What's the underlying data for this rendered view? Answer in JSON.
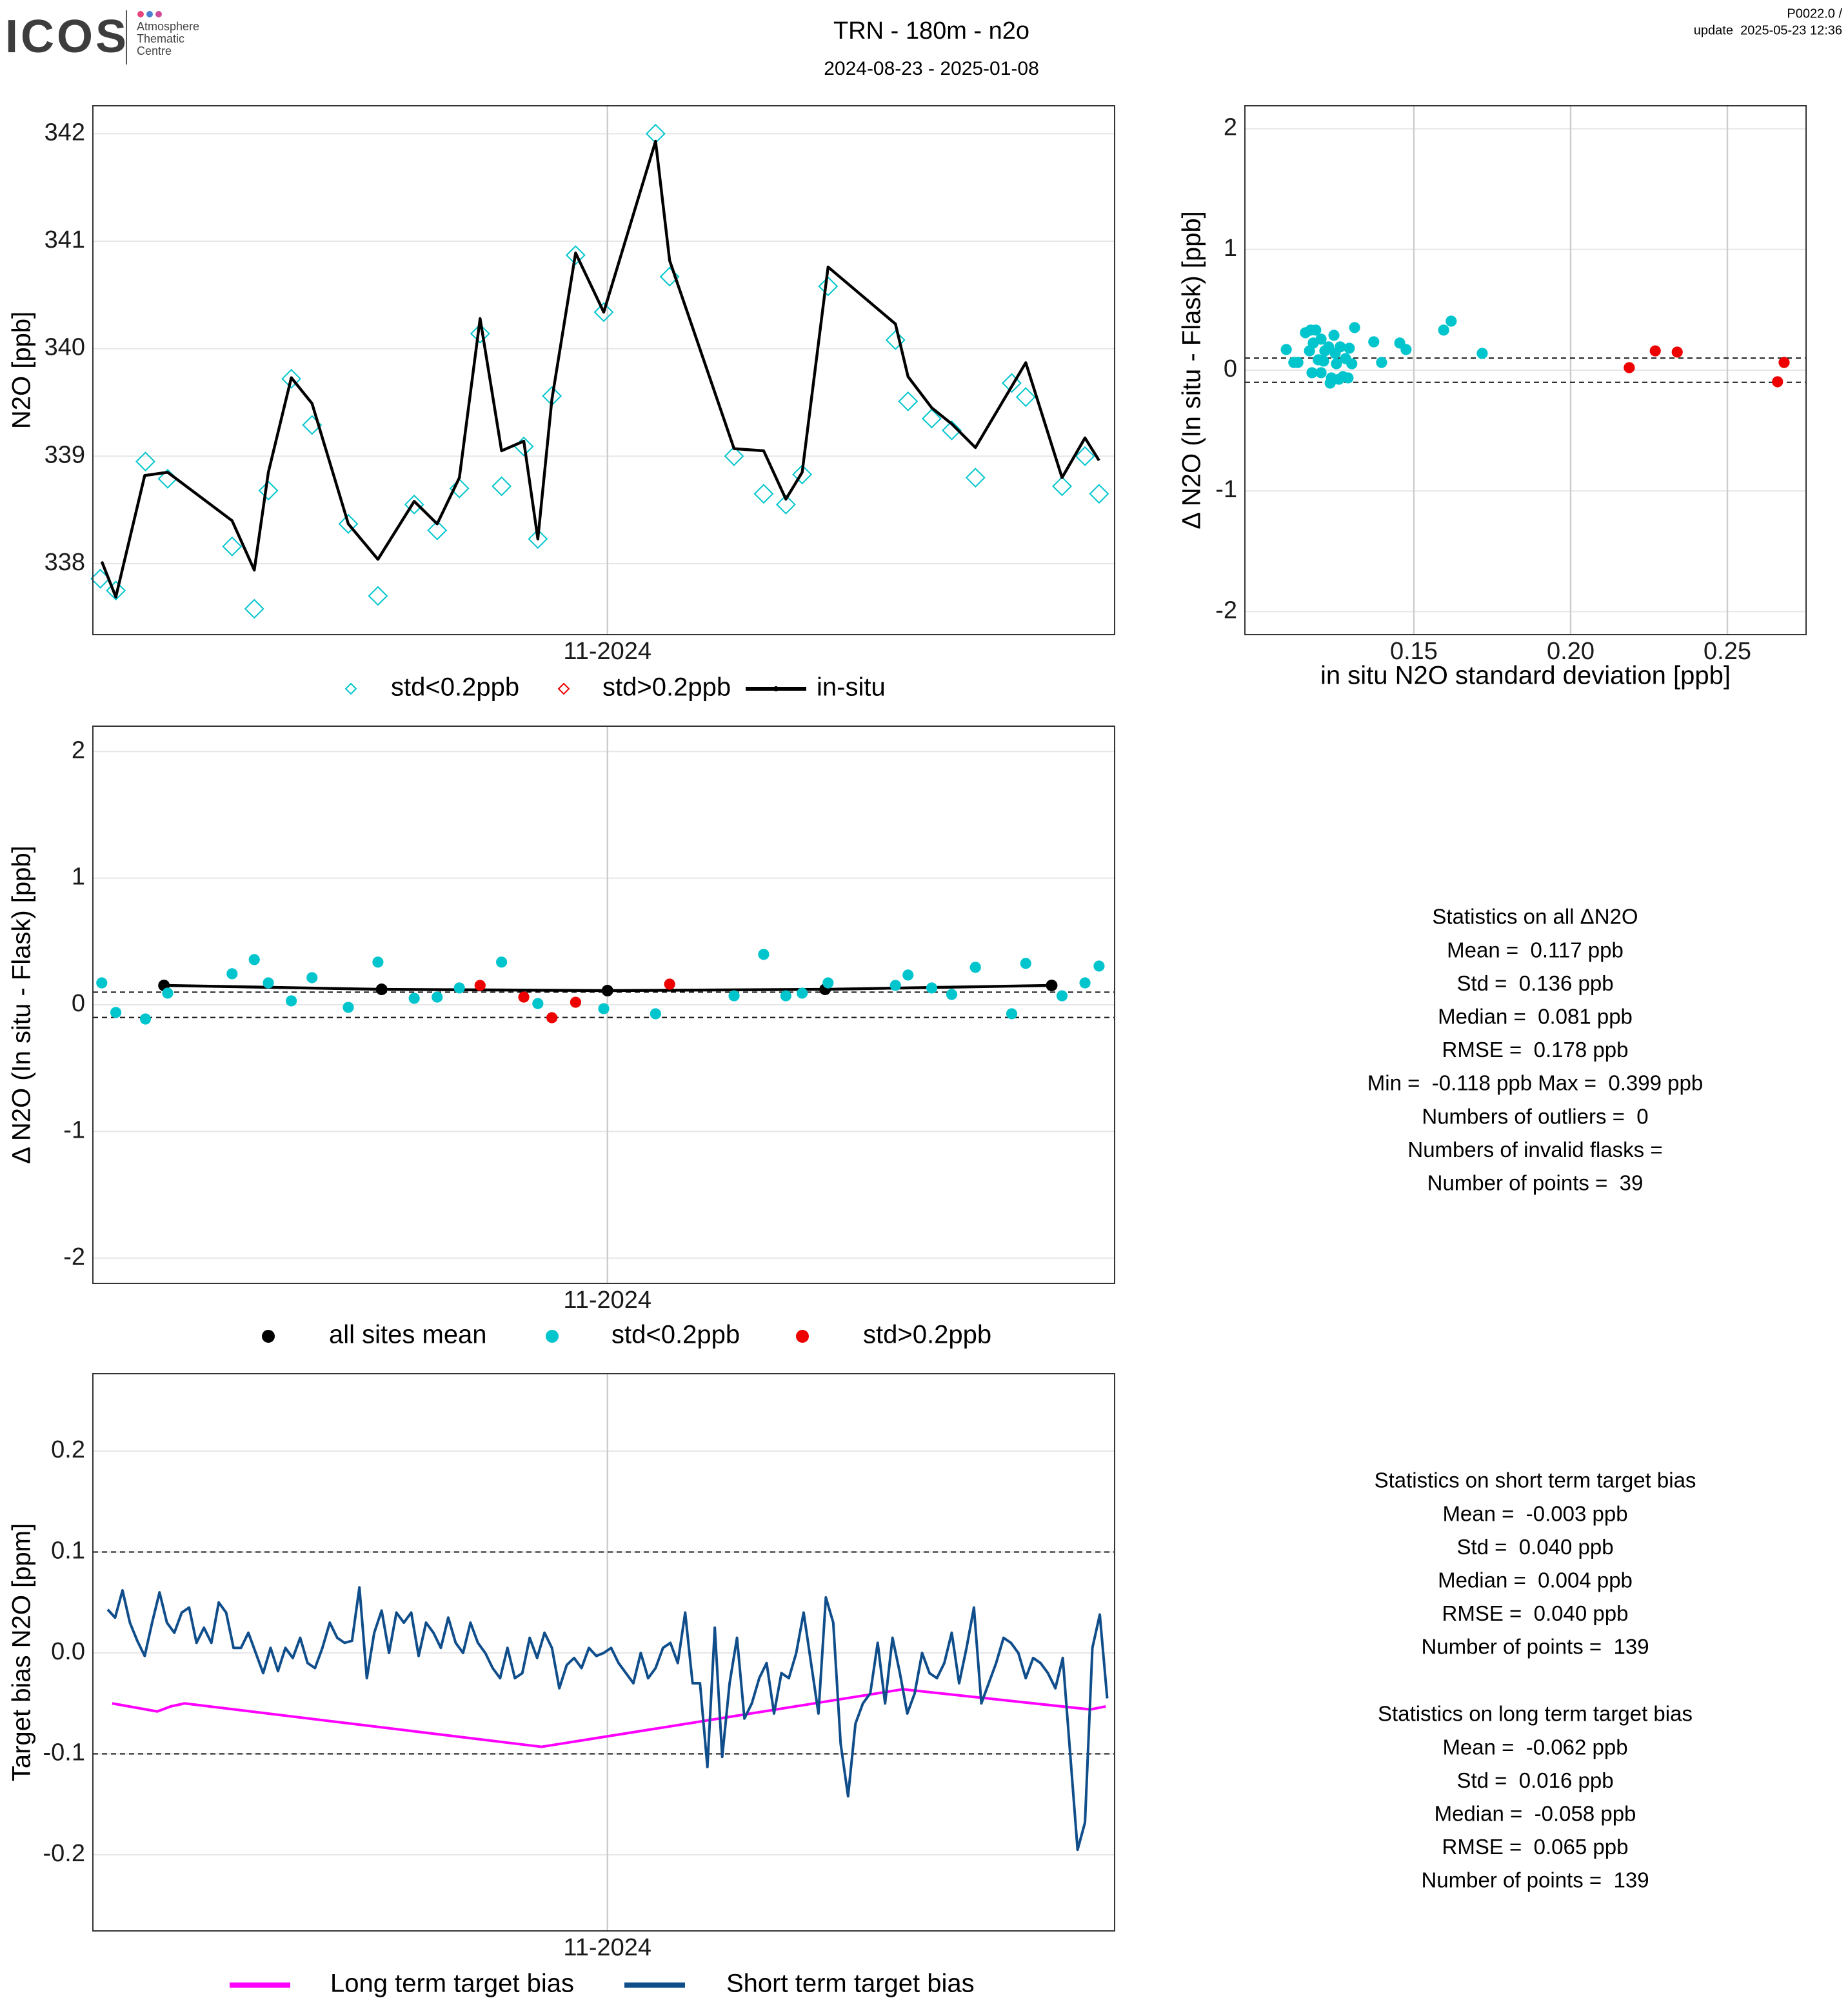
{
  "header": {
    "logo": "ICOS",
    "logo_sub": [
      "Atmosphere",
      "Thematic",
      "Centre"
    ],
    "title": "TRN - 180m - n2o",
    "subtitle": "2024-08-23 - 2025-01-08",
    "version": "P0022.0 /",
    "update": "update  2025-05-23 12:36"
  },
  "chart_data": [
    {
      "type": "line",
      "ylabel": "N2O [ppb]",
      "xlim": [
        0,
        138
      ],
      "xticks": [
        {
          "value": 69.5,
          "label": "11-2024"
        }
      ],
      "ylim": [
        337.34,
        342.26
      ],
      "yticks": [
        338,
        339,
        340,
        341,
        342
      ],
      "grid": true,
      "series": [
        {
          "name": "std<0.2ppb",
          "color": "#00c5cd",
          "marker": "diamond-open",
          "x": [
            1.0,
            3.1,
            7.1,
            10.1,
            18.8,
            21.8,
            23.7,
            26.8,
            29.6,
            34.5,
            38.5,
            43.4,
            46.5,
            49.5,
            52.3,
            55.2,
            58.2,
            60.1,
            62.0,
            65.2,
            69.0,
            76.0,
            77.9,
            86.6,
            90.6,
            93.6,
            95.8,
            99.3,
            108.4,
            110.1,
            113.3,
            116.0,
            119.2,
            124.1,
            126.0,
            130.9,
            134.0,
            135.9
          ],
          "values": [
            337.86,
            337.75,
            338.95,
            338.79,
            338.16,
            337.58,
            338.68,
            339.72,
            339.29,
            338.37,
            337.7,
            338.55,
            338.31,
            338.7,
            340.14,
            338.72,
            339.09,
            338.23,
            339.56,
            340.87,
            340.34,
            342.0,
            340.67,
            339.0,
            338.65,
            338.55,
            338.83,
            340.58,
            340.08,
            339.51,
            339.35,
            339.24,
            338.8,
            339.68,
            339.55,
            338.72,
            339.0,
            338.65
          ]
        },
        {
          "name": "std>0.2ppb",
          "color": "#ee0000",
          "marker": "diamond-open",
          "x": [],
          "values": []
        },
        {
          "name": "in-situ",
          "color": "#000000",
          "marker": "line-dot",
          "x": [
            1.2,
            3.1,
            7.0,
            10.1,
            18.8,
            21.8,
            23.7,
            26.8,
            29.6,
            34.5,
            38.5,
            43.4,
            46.5,
            49.5,
            52.3,
            55.2,
            58.2,
            60.1,
            62.0,
            65.2,
            69.0,
            76.0,
            77.9,
            86.6,
            90.6,
            93.6,
            95.8,
            99.3,
            108.4,
            110.1,
            113.3,
            116.0,
            119.2,
            126.0,
            130.9,
            134.0,
            135.9
          ],
          "values": [
            338.02,
            337.69,
            338.82,
            338.85,
            338.4,
            337.94,
            338.85,
            339.73,
            339.49,
            338.37,
            338.04,
            338.58,
            338.37,
            338.8,
            340.28,
            339.05,
            339.14,
            338.23,
            339.53,
            340.89,
            340.34,
            341.93,
            340.82,
            339.07,
            339.05,
            338.6,
            338.85,
            340.76,
            340.23,
            339.74,
            339.45,
            339.3,
            339.08,
            339.87,
            338.8,
            339.17,
            338.96
          ]
        }
      ]
    },
    {
      "type": "scatter",
      "xlabel": "in situ N2O standard deviation [ppb]",
      "ylabel": "Δ N2O (In situ - Flask) [ppb]",
      "xlim": [
        0.0961,
        0.2751
      ],
      "xticks": [
        0.15,
        {
          "value": 0.2,
          "label": "0.20"
        },
        0.25
      ],
      "ylim": [
        -2.19,
        2.19
      ],
      "yticks": [
        -2,
        -1,
        0,
        1,
        2
      ],
      "ref_lines": [
        -0.1,
        0.1
      ],
      "grid": true,
      "series": [
        {
          "color": "#00c5cd",
          "marker": "circle",
          "x": [
            0.1093,
            0.1117,
            0.113,
            0.1154,
            0.1167,
            0.1171,
            0.1175,
            0.1179,
            0.1187,
            0.1195,
            0.1204,
            0.1204,
            0.1212,
            0.1216,
            0.1228,
            0.1233,
            0.1237,
            0.1245,
            0.1249,
            0.1253,
            0.1261,
            0.1265,
            0.1274,
            0.1282,
            0.129,
            0.1294,
            0.1302,
            0.1311,
            0.1372,
            0.1397,
            0.1455,
            0.1475,
            0.1595,
            0.1619,
            0.1718
          ],
          "values": [
            0.171,
            0.064,
            0.064,
            0.31,
            0.16,
            0.332,
            -0.021,
            0.225,
            0.332,
            0.086,
            -0.021,
            0.257,
            0.075,
            0.16,
            0.193,
            -0.107,
            -0.064,
            0.289,
            0.139,
            0.053,
            -0.075,
            0.193,
            -0.053,
            0.096,
            -0.064,
            0.182,
            0.053,
            0.353,
            0.235,
            0.064,
            0.225,
            0.171,
            0.332,
            0.406,
            0.139
          ]
        },
        {
          "color": "#ee0000",
          "marker": "circle",
          "x": [
            0.2187,
            0.227,
            0.234,
            0.266,
            0.2681
          ],
          "values": [
            0.021,
            0.16,
            0.15,
            -0.096,
            0.064
          ]
        }
      ]
    },
    {
      "type": "scatter",
      "ylabel": "Δ N2O (In situ - Flask) [ppb]",
      "xlim": [
        0,
        138
      ],
      "xticks": [
        {
          "value": 69.5,
          "label": "11-2024"
        }
      ],
      "ylim": [
        -2.2,
        2.2
      ],
      "yticks": [
        -2,
        -1,
        0,
        1,
        2
      ],
      "ref_lines": [
        -0.1,
        0.1
      ],
      "grid": true,
      "series": [
        {
          "name": "all sites mean",
          "color": "#000000",
          "marker": "circle-line",
          "x": [
            9.6,
            39.0,
            69.5,
            98.9,
            129.5
          ],
          "values": [
            0.153,
            0.122,
            0.112,
            0.122,
            0.153
          ]
        },
        {
          "name": "std<0.2ppb",
          "color": "#00c5cd",
          "marker": "circle",
          "x": [
            1.2,
            3.1,
            7.1,
            10.1,
            18.8,
            21.8,
            23.7,
            26.8,
            29.6,
            34.5,
            38.5,
            43.4,
            46.5,
            49.5,
            55.2,
            60.1,
            69.0,
            76.0,
            86.6,
            90.6,
            93.6,
            95.8,
            99.3,
            108.4,
            110.1,
            113.3,
            116.0,
            119.2,
            124.1,
            126.0,
            130.9,
            134.0,
            135.9
          ],
          "values": [
            0.173,
            -0.061,
            -0.112,
            0.092,
            0.245,
            0.357,
            0.173,
            0.031,
            0.214,
            -0.02,
            0.337,
            0.051,
            0.061,
            0.133,
            0.337,
            0.01,
            -0.031,
            -0.071,
            0.071,
            0.398,
            0.071,
            0.092,
            0.173,
            0.153,
            0.235,
            0.133,
            0.082,
            0.296,
            -0.071,
            0.327,
            0.071,
            0.173,
            0.306
          ]
        },
        {
          "name": "std>0.2ppb",
          "color": "#ee0000",
          "marker": "circle",
          "x": [
            52.3,
            58.2,
            62.0,
            65.2,
            77.9
          ],
          "values": [
            0.153,
            0.061,
            -0.102,
            0.02,
            0.163
          ]
        }
      ]
    },
    {
      "type": "line",
      "ylabel": "Target bias N2O [ppm]",
      "xlim": [
        0,
        138
      ],
      "xticks": [
        {
          "value": 69.5,
          "label": "11-2024"
        }
      ],
      "ylim": [
        -0.2754,
        0.2767
      ],
      "yticks": [
        -0.2,
        -0.1,
        {
          "value": 0,
          "label": "0.0"
        },
        0.1,
        0.2
      ],
      "ref_lines": [
        -0.1,
        0.1
      ],
      "grid": true,
      "series": [
        {
          "name": "Long term target bias",
          "color": "#ff00ff",
          "marker": "line",
          "x": [
            2.6,
            8.7,
            10.5,
            12.4,
            60.6,
            109.4,
            134.7,
            136.8
          ],
          "values": [
            -0.05,
            -0.058,
            -0.053,
            -0.05,
            -0.093,
            -0.036,
            -0.056,
            -0.053
          ]
        },
        {
          "name": "Short term target bias",
          "color": "#104e8b",
          "marker": "line",
          "x": [
            2,
            3,
            4,
            5,
            6,
            7,
            8,
            9,
            10,
            11,
            12,
            13,
            14,
            15,
            16,
            17,
            18,
            19,
            20,
            21,
            22,
            23,
            24,
            25,
            26,
            27,
            28,
            29,
            30,
            31,
            32,
            33,
            34,
            35,
            36,
            37,
            38,
            39,
            40,
            41,
            42,
            43,
            44,
            45,
            46,
            47,
            48,
            49,
            50,
            51,
            52,
            53,
            54,
            55,
            56,
            57,
            58,
            59,
            60,
            61,
            62,
            63,
            64,
            65,
            66,
            67,
            68,
            69,
            70,
            71,
            72,
            73,
            74,
            75,
            76,
            77,
            78,
            79,
            80,
            81,
            82,
            83,
            84,
            85,
            86,
            87,
            88,
            89,
            90,
            91,
            92,
            93,
            94,
            95,
            96,
            97,
            98,
            99,
            100,
            101,
            102,
            103,
            104,
            105,
            106,
            107,
            108,
            109,
            110,
            111,
            112,
            113,
            114,
            115,
            116,
            117,
            118,
            119,
            120,
            121,
            122,
            123,
            124,
            125,
            126,
            127,
            128,
            129,
            130,
            131,
            132,
            133,
            134,
            135,
            136,
            137
          ],
          "values": [
            0.043,
            0.035,
            0.062,
            0.03,
            0.012,
            -0.003,
            0.03,
            0.06,
            0.03,
            0.02,
            0.04,
            0.045,
            0.01,
            0.025,
            0.01,
            0.05,
            0.04,
            0.005,
            0.005,
            0.02,
            0.0,
            -0.02,
            0.005,
            -0.018,
            0.005,
            -0.005,
            0.015,
            -0.01,
            -0.015,
            0.005,
            0.03,
            0.015,
            0.01,
            0.012,
            0.065,
            -0.025,
            0.02,
            0.042,
            0.0,
            0.04,
            0.03,
            0.04,
            -0.003,
            0.03,
            0.02,
            0.005,
            0.035,
            0.01,
            0.0,
            0.03,
            0.01,
            0.0,
            -0.015,
            -0.025,
            0.005,
            -0.025,
            -0.02,
            0.015,
            -0.005,
            0.02,
            0.005,
            -0.035,
            -0.012,
            -0.005,
            -0.015,
            0.005,
            -0.003,
            0.0,
            0.005,
            -0.01,
            -0.02,
            -0.03,
            0.0,
            -0.025,
            -0.015,
            0.005,
            0.01,
            -0.01,
            0.04,
            -0.03,
            -0.03,
            -0.113,
            0.025,
            -0.103,
            -0.03,
            0.015,
            -0.065,
            -0.05,
            -0.025,
            -0.01,
            -0.06,
            -0.02,
            -0.025,
            0.0,
            0.04,
            -0.01,
            -0.06,
            0.055,
            0.03,
            -0.09,
            -0.142,
            -0.07,
            -0.05,
            -0.04,
            0.01,
            -0.05,
            0.015,
            -0.02,
            -0.06,
            -0.04,
            0.0,
            -0.02,
            -0.025,
            -0.01,
            0.02,
            -0.03,
            0.005,
            0.045,
            -0.05,
            -0.03,
            -0.01,
            0.015,
            0.01,
            0.0,
            -0.025,
            -0.005,
            -0.01,
            -0.02,
            -0.035,
            -0.005,
            -0.1,
            -0.195,
            -0.168,
            0.005,
            0.038,
            -0.045
          ]
        }
      ]
    }
  ],
  "stats_all": [
    "Statistics on all ΔN2O",
    "Mean =  0.117 ppb",
    "Std =  0.136 ppb",
    "Median =  0.081 ppb",
    "RMSE =  0.178 ppb",
    "Min =  -0.118 ppb Max =  0.399 ppb",
    "Numbers of outliers =  0",
    "Numbers of invalid flasks =",
    "Number of points =  39"
  ],
  "stats_short": [
    "Statistics on short term target bias",
    "Mean =  -0.003 ppb",
    "Std =  0.040 ppb",
    "Median =  0.004 ppb",
    "RMSE =  0.040 ppb",
    "Number of points =  139"
  ],
  "stats_long": [
    "Statistics on long term target bias",
    "Mean =  -0.062 ppb",
    "Std =  0.016 ppb",
    "Median =  -0.058 ppb",
    "RMSE =  0.065 ppb",
    "Number of points =  139"
  ]
}
